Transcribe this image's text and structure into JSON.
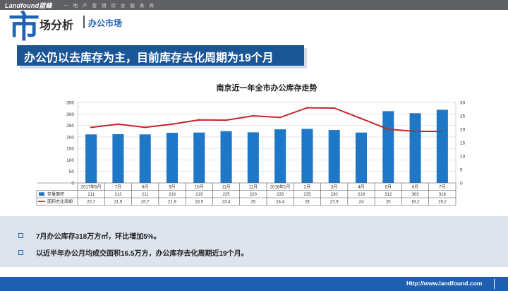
{
  "header": {
    "logo": "Landfound蓝峰",
    "slogan": "一 地 产 营 销 综 合 服 务 商",
    "section_char": "市",
    "section_rest": "场分析",
    "section_sub": "办公市场"
  },
  "banner": {
    "text": "办公仍以去库存为主，目前库存去化周期为19个月"
  },
  "chart_data": {
    "type": "bar",
    "title": "南京近一年全市办公库存走势",
    "categories": [
      "2017年6月",
      "7月",
      "8月",
      "9月",
      "10月",
      "11月",
      "12月",
      "2018年1月",
      "2月",
      "3月",
      "4月",
      "5月",
      "6月",
      "7月"
    ],
    "y_left": {
      "ylim": [
        0,
        350
      ],
      "ticks": [
        "0",
        "50",
        "100",
        "150",
        "200",
        "250",
        "300",
        "350"
      ]
    },
    "y_right": {
      "ylim": [
        0,
        30
      ],
      "ticks": [
        "0",
        "5",
        "10",
        "15",
        "20",
        "25",
        "30"
      ]
    },
    "series": [
      {
        "name": "存量面积",
        "kind": "bar",
        "axis": "left",
        "color": "#1f77c8",
        "values": [
          211,
          212,
          211,
          218,
          219,
          225,
          220,
          233,
          235,
          230,
          219,
          312,
          303,
          318
        ],
        "labels": [
          "211",
          "212",
          "211",
          "218",
          "219",
          "225",
          "220",
          "233",
          "235",
          "230",
          "219",
          "312",
          "303",
          "318"
        ]
      },
      {
        "name": "面积去化周期",
        "kind": "line",
        "axis": "right",
        "color": "#c4262d",
        "values": [
          20.7,
          21.9,
          20.7,
          21.9,
          23.5,
          23.4,
          25,
          24.4,
          28,
          27.9,
          24,
          20,
          19.2,
          19.2
        ],
        "labels": [
          "20.7",
          "21.9",
          "20.7",
          "21.9",
          "23.5",
          "23.4",
          "25",
          "24.4",
          "28",
          "27.9",
          "24",
          "20",
          "19.2",
          "19.2"
        ]
      }
    ],
    "grid": true,
    "legend": "data-table"
  },
  "bullets": [
    "7月办公库存318万方㎡，环比增加5%。",
    "以近半年办公月均成交面积16.5万方，办公库存去化周期近19个月。"
  ],
  "footer": {
    "url": "Http://www.landfound.com"
  }
}
